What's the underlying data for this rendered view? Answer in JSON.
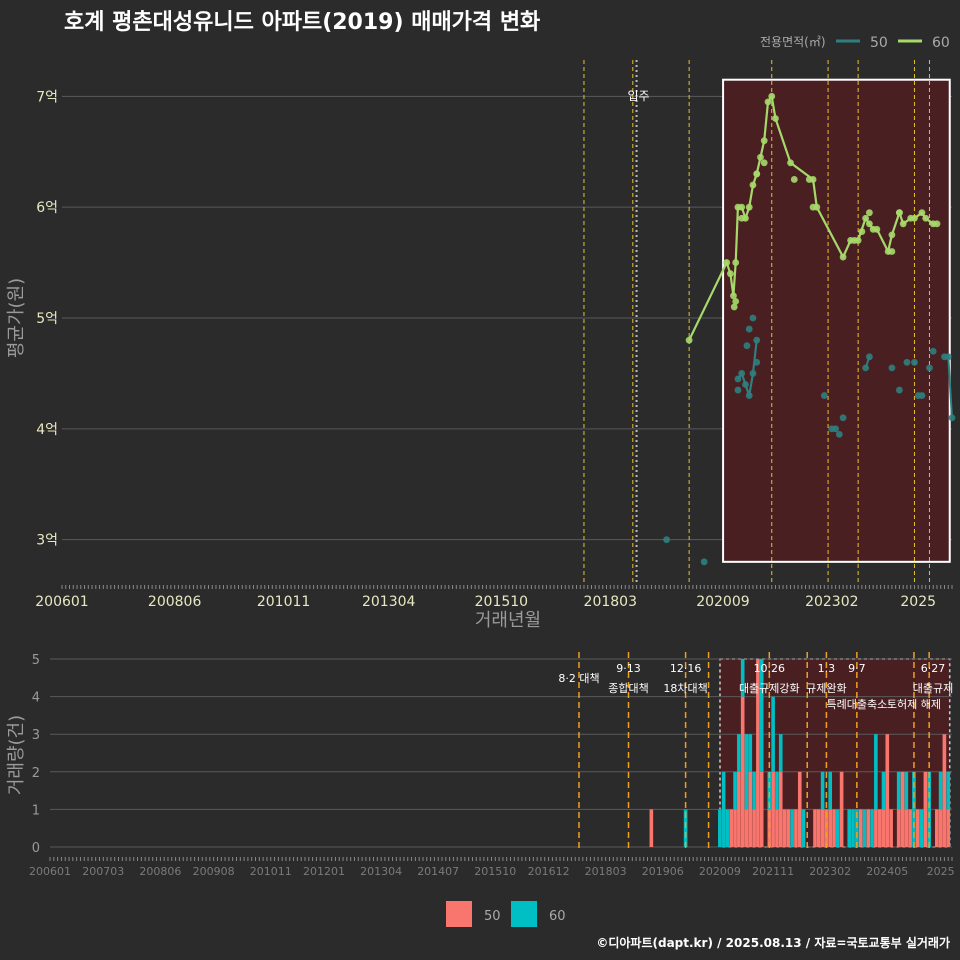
{
  "header": {
    "title": "호계 평촌대성유니드 아파트(2019) 매매가격 변화",
    "legend_title": "전용면적(㎡)"
  },
  "footer": {
    "credit": "©디아파트(dapt.kr) / 2025.08.13 / 자료=국토교통부 실거래가"
  },
  "colors": {
    "background": "#2b2b2b",
    "grid": "#5a5a5a",
    "series_50": "#2f7f80",
    "series_60": "#a6d96a",
    "bar_50": "#f8766d",
    "bar_60": "#00bfc4",
    "highlight_fill": "#4a1f22",
    "policy_line": "#e6c229",
    "policy_line_bottom": "#f0a020",
    "move_in_line": "#bbbbbb"
  },
  "chart_data": [
    {
      "type": "line",
      "title": "호계 평촌대성유니드 아파트(2019) 매매가격 변화",
      "xlabel": "거래년월",
      "ylabel": "평균가(원)",
      "ylim": [
        2.6,
        7.4
      ],
      "yticks": [
        3,
        4,
        5,
        6,
        7
      ],
      "ytick_labels": [
        "3억",
        "4억",
        "5억",
        "6억",
        "7억"
      ],
      "xlim": [
        2006.0,
        2025.75
      ],
      "xticks": [
        2006.0,
        2008.5,
        2010.917,
        2013.25,
        2015.75,
        2018.167,
        2020.667,
        2023.083,
        2025.0
      ],
      "xtick_labels": [
        "200601",
        "200806",
        "201011",
        "201304",
        "201510",
        "201803",
        "202009",
        "202302",
        "2025"
      ],
      "legend": [
        "50",
        "60"
      ],
      "annotations": {
        "move_in": {
          "x": 2018.75,
          "label": "입주"
        },
        "policy_lines": [
          2017.583,
          2018.667,
          2019.917,
          2021.75,
          2023.0,
          2023.667,
          2024.917,
          2025.25
        ],
        "highlight": {
          "x_from": 2020.67,
          "x_to": 2025.7,
          "y_from": 2.8,
          "y_to": 7.15
        }
      },
      "series": [
        {
          "name": "60",
          "points": [
            [
              2019.917,
              4.8
            ],
            [
              2020.75,
              5.5
            ],
            [
              2020.833,
              5.4
            ],
            [
              2020.9,
              5.2
            ],
            [
              2020.95,
              5.5
            ],
            [
              2021.0,
              6.0
            ],
            [
              2021.083,
              6.0
            ],
            [
              2021.167,
              5.9
            ],
            [
              2021.25,
              6.0
            ],
            [
              2021.333,
              6.2
            ],
            [
              2021.417,
              6.3
            ],
            [
              2021.5,
              6.45
            ],
            [
              2021.583,
              6.6
            ],
            [
              2021.667,
              6.95
            ],
            [
              2021.75,
              7.0
            ],
            [
              2021.833,
              6.8
            ],
            [
              2022.167,
              6.4
            ],
            [
              2022.667,
              6.25
            ],
            [
              2022.75,
              6.0
            ],
            [
              2023.333,
              5.55
            ],
            [
              2023.5,
              5.7
            ],
            [
              2023.667,
              5.7
            ],
            [
              2023.833,
              5.9
            ],
            [
              2023.917,
              5.85
            ],
            [
              2024.0,
              5.8
            ],
            [
              2024.083,
              5.8
            ],
            [
              2024.333,
              5.6
            ],
            [
              2024.417,
              5.75
            ],
            [
              2024.583,
              5.95
            ],
            [
              2024.667,
              5.85
            ],
            [
              2024.833,
              5.9
            ],
            [
              2024.917,
              5.9
            ],
            [
              2025.083,
              5.95
            ],
            [
              2025.167,
              5.9
            ],
            [
              2025.333,
              5.85
            ],
            [
              2025.417,
              5.85
            ]
          ],
          "extra_points": [
            [
              2020.917,
              5.1
            ],
            [
              2020.95,
              5.15
            ],
            [
              2021.083,
              5.9
            ],
            [
              2021.417,
              6.3
            ],
            [
              2021.583,
              6.4
            ],
            [
              2022.25,
              6.25
            ],
            [
              2022.583,
              6.25
            ],
            [
              2022.667,
              6.0
            ],
            [
              2023.583,
              5.7
            ],
            [
              2023.75,
              5.78
            ],
            [
              2023.917,
              5.95
            ],
            [
              2024.417,
              5.6
            ],
            [
              2024.583,
              5.95
            ]
          ]
        },
        {
          "name": "50",
          "points": [
            [
              2021.0,
              4.45
            ],
            [
              2021.083,
              4.5
            ],
            [
              2021.167,
              4.4
            ],
            [
              2021.25,
              4.3
            ],
            [
              2021.333,
              4.5
            ],
            [
              2021.417,
              4.8
            ]
          ],
          "extra_points": [
            [
              2019.417,
              3.0
            ],
            [
              2020.25,
              2.8
            ],
            [
              2021.0,
              4.35
            ],
            [
              2021.25,
              4.9
            ],
            [
              2021.333,
              5.0
            ],
            [
              2021.417,
              4.6
            ],
            [
              2021.2,
              4.75
            ],
            [
              2022.917,
              4.3
            ],
            [
              2023.083,
              4.0
            ],
            [
              2023.167,
              4.0
            ],
            [
              2023.25,
              3.95
            ],
            [
              2023.333,
              4.1
            ],
            [
              2023.833,
              4.55
            ],
            [
              2023.917,
              4.65
            ],
            [
              2024.417,
              4.55
            ],
            [
              2024.583,
              4.35
            ],
            [
              2024.75,
              4.6
            ],
            [
              2024.917,
              4.6
            ],
            [
              2025.0,
              4.3
            ],
            [
              2025.083,
              4.3
            ],
            [
              2025.25,
              4.55
            ],
            [
              2025.333,
              4.7
            ],
            [
              2025.583,
              4.65
            ],
            [
              2025.667,
              4.65
            ],
            [
              2025.75,
              4.1
            ]
          ],
          "line_segments": [
            [
              [
                2023.833,
                4.55
              ],
              [
                2023.917,
                4.65
              ]
            ],
            [
              [
                2025.583,
                4.65
              ],
              [
                2025.667,
                4.65
              ],
              [
                2025.75,
                4.1
              ]
            ]
          ]
        }
      ]
    },
    {
      "type": "bar",
      "xlabel": "",
      "ylabel": "거래량(건)",
      "ylim": [
        0,
        5
      ],
      "yticks": [
        0,
        1,
        2,
        3,
        4,
        5
      ],
      "ytick_labels": [
        "0",
        "1",
        "2",
        "3",
        "4",
        "5"
      ],
      "xlim": [
        2006.0,
        2025.75
      ],
      "xtick_labels": [
        "200601",
        "200703",
        "200806",
        "200908",
        "201011",
        "201201",
        "201304",
        "201407",
        "201510",
        "201612",
        "201803",
        "201906",
        "202009",
        "202111",
        "202302",
        "202405",
        "2025"
      ],
      "xticks": [
        2006.0,
        2007.167,
        2008.417,
        2009.583,
        2010.833,
        2012.0,
        2013.25,
        2014.5,
        2015.75,
        2016.917,
        2018.167,
        2019.417,
        2020.667,
        2021.833,
        2023.083,
        2024.333,
        2025.5
      ],
      "legend": [
        "50",
        "60"
      ],
      "policy_labels": [
        {
          "x": 2017.583,
          "date": "",
          "text": "8·2 대책"
        },
        {
          "x": 2018.667,
          "date": "9·13",
          "text": "종합대책"
        },
        {
          "x": 2019.917,
          "date": "12·16",
          "text": "18차대책"
        },
        {
          "x": 2021.75,
          "date": "10.26",
          "text": "대출규제강화"
        },
        {
          "x": 2023.0,
          "date": "1.3",
          "text": "규제완화"
        },
        {
          "x": 2023.667,
          "date": "9·7",
          "text": "특례대출축소"
        },
        {
          "x": 2024.917,
          "date": "",
          "text": "토허제 해제"
        },
        {
          "x": 2025.333,
          "date": "6·27",
          "text": "대출규제"
        }
      ],
      "policy_lines": [
        2017.583,
        2018.667,
        2019.917,
        2020.42,
        2021.75,
        2022.58,
        2023.0,
        2023.667,
        2024.917,
        2025.25
      ],
      "highlight": {
        "x_from": 2020.67,
        "x_to": 2025.7
      },
      "series": [
        {
          "name": "50",
          "bars": [
            [
              2019.167,
              1
            ],
            [
              2020.917,
              1
            ],
            [
              2021.0,
              1
            ],
            [
              2021.083,
              2
            ],
            [
              2021.167,
              4
            ],
            [
              2021.25,
              1
            ],
            [
              2021.333,
              2
            ],
            [
              2021.417,
              1
            ],
            [
              2021.5,
              5
            ],
            [
              2021.583,
              2
            ],
            [
              2021.75,
              1
            ],
            [
              2021.833,
              2
            ],
            [
              2021.917,
              1
            ],
            [
              2022.0,
              2
            ],
            [
              2022.083,
              1
            ],
            [
              2022.167,
              1
            ],
            [
              2022.333,
              1
            ],
            [
              2022.417,
              2
            ],
            [
              2022.75,
              1
            ],
            [
              2022.833,
              1
            ],
            [
              2022.917,
              1
            ],
            [
              2023.0,
              1
            ],
            [
              2023.083,
              1
            ],
            [
              2023.167,
              1
            ],
            [
              2023.333,
              2
            ],
            [
              2023.75,
              1
            ],
            [
              2023.917,
              1
            ],
            [
              2024.083,
              1
            ],
            [
              2024.167,
              1
            ],
            [
              2024.25,
              1
            ],
            [
              2024.333,
              3
            ],
            [
              2024.417,
              1
            ],
            [
              2024.583,
              1
            ],
            [
              2024.667,
              2
            ],
            [
              2024.75,
              1
            ],
            [
              2024.833,
              1
            ],
            [
              2025.0,
              1
            ],
            [
              2025.167,
              2
            ],
            [
              2025.417,
              1
            ],
            [
              2025.5,
              1
            ],
            [
              2025.583,
              3
            ],
            [
              2025.667,
              1
            ]
          ]
        },
        {
          "name": "60",
          "bars": [
            [
              2019.917,
              1
            ],
            [
              2020.667,
              1
            ],
            [
              2020.75,
              2
            ],
            [
              2020.833,
              1
            ],
            [
              2021.0,
              1
            ],
            [
              2021.083,
              1
            ],
            [
              2021.167,
              1
            ],
            [
              2021.25,
              2
            ],
            [
              2021.333,
              1
            ],
            [
              2021.417,
              1
            ],
            [
              2021.583,
              3
            ],
            [
              2021.75,
              1
            ],
            [
              2021.833,
              2
            ],
            [
              2021.917,
              1
            ],
            [
              2022.0,
              1
            ],
            [
              2022.25,
              1
            ],
            [
              2022.5,
              1
            ],
            [
              2022.917,
              1
            ],
            [
              2023.083,
              1
            ],
            [
              2023.25,
              1
            ],
            [
              2023.5,
              1
            ],
            [
              2023.583,
              1
            ],
            [
              2023.667,
              1
            ],
            [
              2023.833,
              1
            ],
            [
              2024.0,
              1
            ],
            [
              2024.083,
              2
            ],
            [
              2024.25,
              1
            ],
            [
              2024.583,
              1
            ],
            [
              2024.75,
              1
            ],
            [
              2024.917,
              2
            ],
            [
              2025.083,
              1
            ],
            [
              2025.25,
              2
            ],
            [
              2025.5,
              1
            ],
            [
              2025.667,
              1
            ]
          ]
        }
      ]
    }
  ]
}
